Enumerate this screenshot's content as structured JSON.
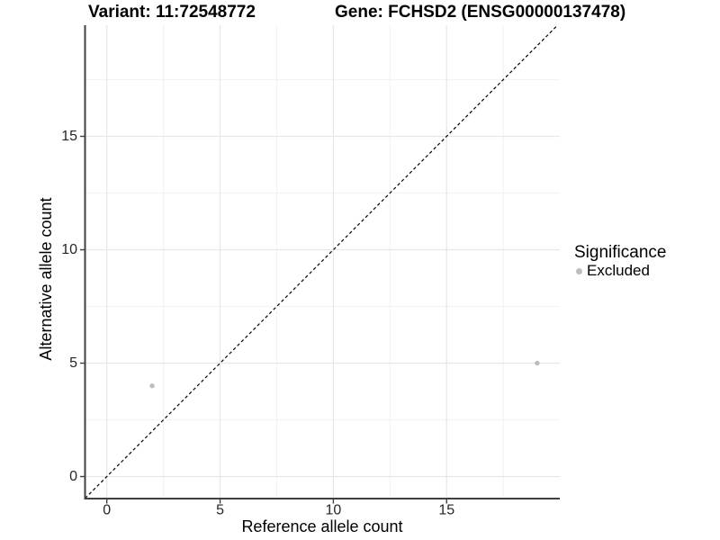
{
  "chart_data": {
    "type": "scatter",
    "title_left": "Variant: 11:72548772",
    "title_right": "Gene: FCHSD2 (ENSG00000137478)",
    "xlabel": "Reference allele count",
    "ylabel": "Alternative allele count",
    "xlim": [
      -1,
      20
    ],
    "ylim": [
      -1,
      20
    ],
    "x_major_ticks": [
      0,
      5,
      10,
      15
    ],
    "x_minor_ticks": [
      2.5,
      7.5,
      12.5,
      17.5
    ],
    "y_major_ticks": [
      0,
      5,
      10,
      15
    ],
    "y_minor_ticks": [
      2.5,
      7.5,
      12.5,
      17.5
    ],
    "grid": true,
    "legend_position": "right",
    "legend": {
      "title": "Significance",
      "items": [
        {
          "label": "Excluded",
          "color": "#bdbdbd"
        }
      ]
    },
    "series": [
      {
        "name": "Excluded",
        "color": "#bdbdbd",
        "points": [
          [
            2,
            4
          ],
          [
            19,
            5
          ]
        ]
      }
    ],
    "reference_line": {
      "slope": 1,
      "intercept": 0,
      "style": "dashed",
      "color": "#000000"
    },
    "colors": {
      "background": "#ffffff",
      "grid_major": "#e7e7e7",
      "grid_minor": "#f3f3f3",
      "axis_line": "#404040",
      "tick_text": "#262626",
      "point": "#bdbdbd"
    }
  }
}
